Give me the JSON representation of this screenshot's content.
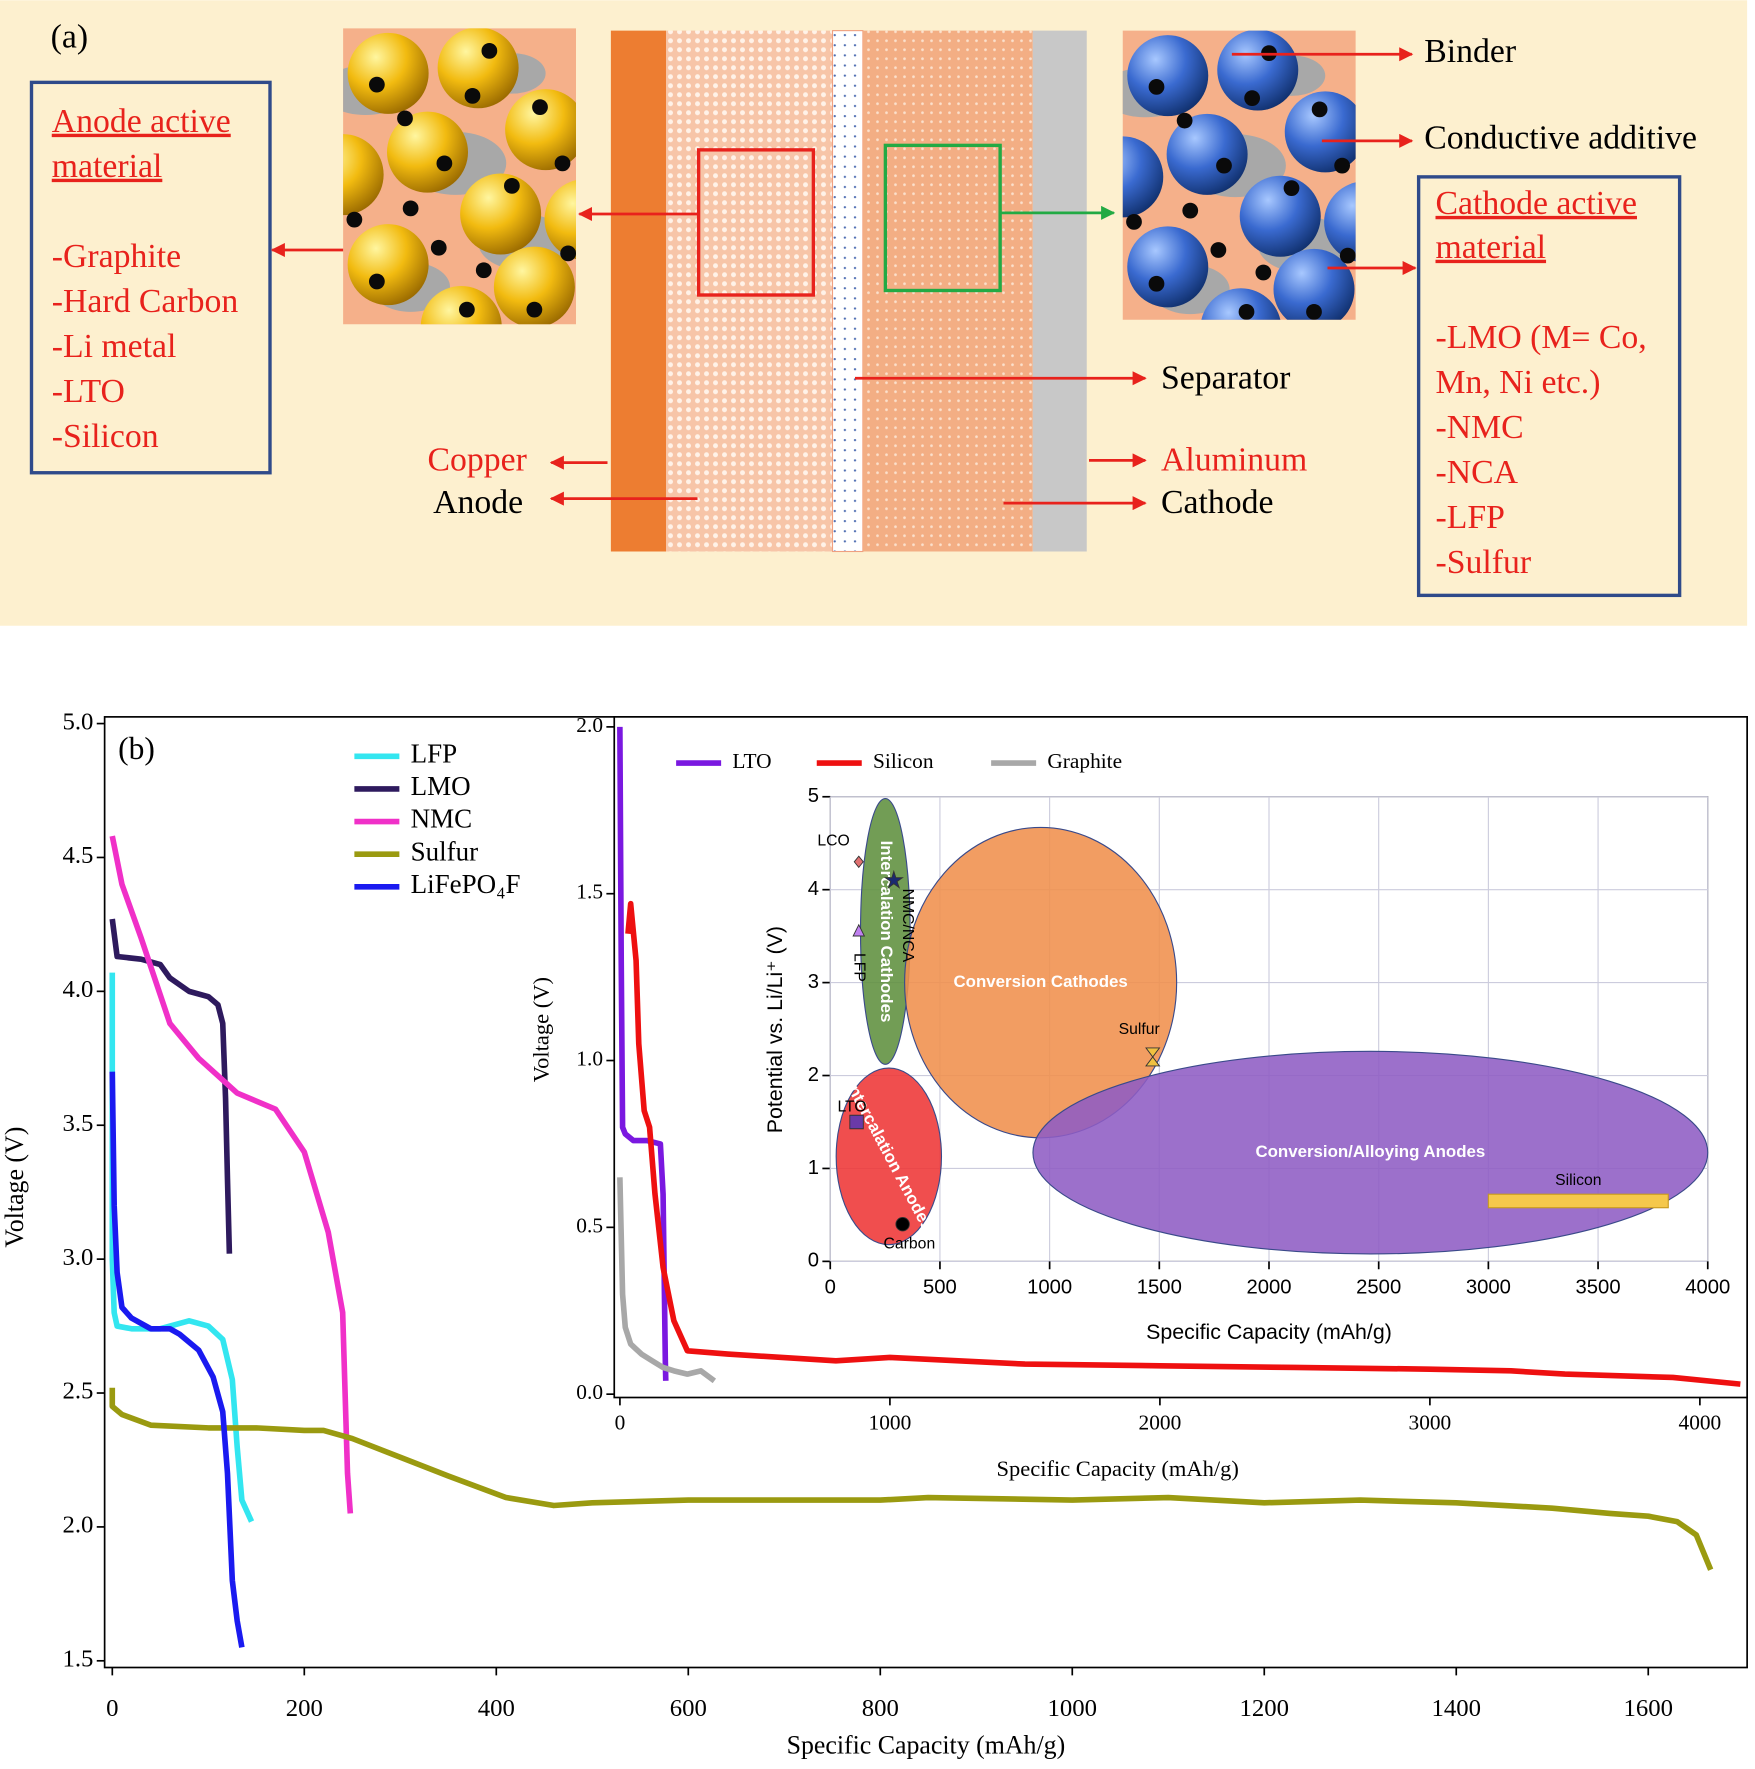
{
  "diagram": {
    "label": "(a)",
    "anode_box": {
      "title": [
        "Anode active",
        "material"
      ],
      "items": [
        "-Graphite",
        "-Hard Carbon",
        "-Li metal",
        "-LTO",
        "-Silicon"
      ]
    },
    "cathode_box": {
      "title": [
        "Cathode active",
        "material"
      ],
      "items": [
        "-LMO (M= Co,",
        "Mn, Ni etc.)",
        "-NMC",
        "-NCA",
        "-LFP",
        "-Sulfur"
      ]
    },
    "labels": {
      "binder": "Binder",
      "conductive": "Conductive additive",
      "separator": "Separator",
      "copper": "Copper",
      "anode": "Anode",
      "aluminum": "Aluminum",
      "cathode": "Cathode"
    }
  },
  "chart_data": [
    {
      "type": "line",
      "panel_label": "(b)",
      "xlabel": "Specific Capacity (mAh/g)",
      "ylabel": "Voltage (V)",
      "xlim": [
        -8,
        1703
      ],
      "ylim": [
        1.475,
        5.025
      ],
      "xticks": [
        0,
        200,
        400,
        600,
        800,
        1000,
        1200,
        1400,
        1600
      ],
      "yticks": [
        1.5,
        {
          "value": 2,
          "label": "2.0"
        },
        2.5,
        {
          "value": 3,
          "label": "3.0"
        },
        3.5,
        {
          "value": 4,
          "label": "4.0"
        },
        4.5,
        {
          "value": 5,
          "label": "5.0"
        }
      ],
      "legend": "upper left",
      "series": [
        {
          "name": "LFP",
          "color": "#33e6f0",
          "x": [
            0,
            0,
            2,
            5,
            20,
            50,
            80,
            100,
            115,
            125,
            130,
            135,
            145
          ],
          "values": [
            4.07,
            3.0,
            2.8,
            2.75,
            2.74,
            2.74,
            2.77,
            2.75,
            2.7,
            2.55,
            2.3,
            2.1,
            2.02
          ]
        },
        {
          "name": "LMO",
          "color": "#2e1a5e",
          "x": [
            0,
            5,
            30,
            50,
            60,
            80,
            100,
            110,
            115,
            118,
            120,
            122
          ],
          "values": [
            4.27,
            4.13,
            4.12,
            4.1,
            4.05,
            4.0,
            3.98,
            3.95,
            3.88,
            3.6,
            3.3,
            3.02
          ]
        },
        {
          "name": "NMC",
          "color": "#f030c8",
          "x": [
            0,
            10,
            30,
            60,
            90,
            130,
            170,
            200,
            225,
            240,
            245,
            248
          ],
          "values": [
            4.58,
            4.4,
            4.2,
            3.88,
            3.75,
            3.62,
            3.56,
            3.4,
            3.1,
            2.8,
            2.2,
            2.05
          ]
        },
        {
          "name": "Sulfur",
          "color": "#9a9a10",
          "x": [
            0,
            0,
            10,
            40,
            100,
            150,
            200,
            220,
            250,
            300,
            350,
            410,
            460,
            500,
            600,
            800,
            850,
            1000,
            1100,
            1200,
            1300,
            1400,
            1500,
            1560,
            1600,
            1630,
            1650,
            1665
          ],
          "values": [
            2.52,
            2.45,
            2.42,
            2.38,
            2.37,
            2.37,
            2.36,
            2.36,
            2.33,
            2.26,
            2.19,
            2.11,
            2.08,
            2.09,
            2.1,
            2.1,
            2.11,
            2.1,
            2.11,
            2.09,
            2.1,
            2.09,
            2.07,
            2.05,
            2.04,
            2.02,
            1.97,
            1.84
          ]
        },
        {
          "name": "LiFePO₄F",
          "color": "#1a1af0",
          "x": [
            0,
            2,
            5,
            10,
            20,
            40,
            60,
            70,
            90,
            105,
            115,
            120,
            125,
            130,
            135
          ],
          "values": [
            3.7,
            3.2,
            2.95,
            2.82,
            2.78,
            2.74,
            2.74,
            2.72,
            2.66,
            2.56,
            2.43,
            2.2,
            1.8,
            1.65,
            1.55
          ]
        }
      ]
    },
    {
      "type": "line",
      "xlabel": "Specific Capacity (mAh/g)",
      "ylabel": "Voltage (V)",
      "xlim": [
        -21,
        4175
      ],
      "ylim": [
        -0.01,
        2.03
      ],
      "xticks": [
        0,
        1000,
        2000,
        3000,
        4000
      ],
      "yticks": [
        {
          "value": 0,
          "label": "0.0"
        },
        0.5,
        {
          "value": 1,
          "label": "1.0"
        },
        1.5,
        {
          "value": 2,
          "label": "2.0"
        }
      ],
      "legend": "top",
      "series": [
        {
          "name": "LTO",
          "color": "#7a18e0",
          "x": [
            0,
            5,
            10,
            20,
            50,
            100,
            150,
            160,
            165,
            168,
            170
          ],
          "values": [
            2.0,
            1.3,
            0.8,
            0.78,
            0.76,
            0.76,
            0.75,
            0.6,
            0.3,
            0.1,
            0.04
          ]
        },
        {
          "name": "Silicon",
          "color": "#ee1010",
          "x": [
            30,
            40,
            60,
            70,
            90,
            110,
            130,
            160,
            200,
            250,
            400,
            800,
            1000,
            1500,
            2000,
            2500,
            3000,
            3300,
            3500,
            3900,
            4150
          ],
          "values": [
            1.38,
            1.47,
            1.3,
            1.05,
            0.85,
            0.8,
            0.6,
            0.38,
            0.22,
            0.13,
            0.12,
            0.1,
            0.11,
            0.09,
            0.085,
            0.08,
            0.075,
            0.07,
            0.06,
            0.05,
            0.03
          ]
        },
        {
          "name": "Graphite",
          "color": "#a8a8a8",
          "x": [
            0,
            10,
            20,
            40,
            80,
            120,
            160,
            200,
            250,
            300,
            350
          ],
          "values": [
            0.65,
            0.3,
            0.2,
            0.15,
            0.12,
            0.1,
            0.08,
            0.07,
            0.06,
            0.07,
            0.04
          ]
        }
      ]
    },
    {
      "type": "scatter",
      "xlabel": "Specific Capacity (mAh/g)",
      "ylabel": "Potential vs. Li/Li⁺ (V)",
      "xlim": [
        0,
        4000
      ],
      "ylim": [
        0,
        5
      ],
      "xticks": [
        0,
        500,
        1000,
        1500,
        2000,
        2500,
        3000,
        3500,
        4000
      ],
      "yticks": [
        0,
        1,
        2,
        3,
        4,
        5
      ],
      "grid": true,
      "regions": [
        {
          "name": "Intercalation Cathodes",
          "x": 251,
          "y": 3.55,
          "rx": 113,
          "ry": 1.43,
          "color": "#5f8f3e"
        },
        {
          "name": "Conversion Cathodes",
          "x": 959,
          "y": 3.0,
          "rx": 620,
          "ry": 1.67,
          "color": "#f0904c"
        },
        {
          "name": "Intercalation Anodes",
          "x": 267,
          "y": 1.13,
          "rx": 240,
          "ry": 0.95,
          "color": "#ee3535"
        },
        {
          "name": "Conversion/Alloying Anodes",
          "x": 2462,
          "y": 1.17,
          "rx": 1538,
          "ry": 1.09,
          "color": "#8e5cc4"
        }
      ],
      "points": [
        {
          "name": "LCO",
          "x": 130,
          "y": 4.3,
          "marker": "diamond",
          "color": "#e07070"
        },
        {
          "name": "NMC/NCA",
          "x": 290,
          "y": 4.1,
          "marker": "star",
          "color": "#1a2a70"
        },
        {
          "name": "LFP",
          "x": 130,
          "y": 3.55,
          "marker": "triangle",
          "color": "#c080f0"
        },
        {
          "name": "Sulfur",
          "x": 1470,
          "y": 2.2,
          "marker": "hourglass",
          "color": "#f0c040"
        },
        {
          "name": "LTO",
          "x": 120,
          "y": 1.5,
          "marker": "square",
          "color": "#6a3aa8"
        },
        {
          "name": "Carbon",
          "x": 330,
          "y": 0.4,
          "marker": "circle",
          "color": "#000000"
        }
      ],
      "bars": [
        {
          "name": "Silicon",
          "x": [
            3000,
            3820
          ],
          "y": 0.65,
          "color": "#f5c84c"
        }
      ]
    }
  ]
}
